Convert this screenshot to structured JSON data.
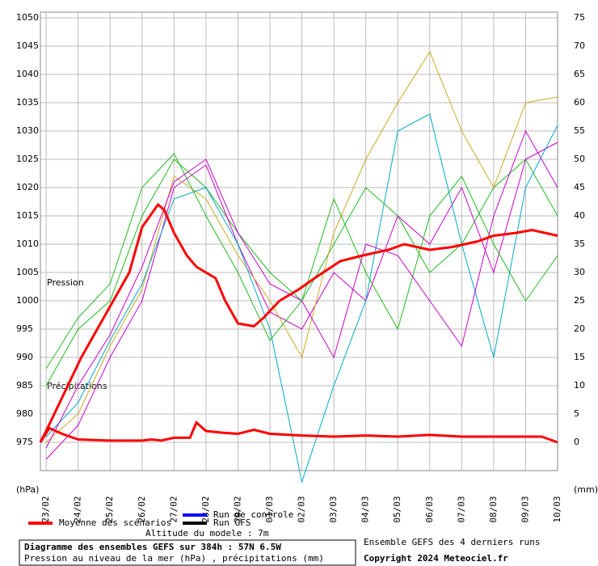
{
  "chart_data": {
    "type": "line",
    "title": "Diagramme des ensembles GEFS sur 384h : 57N 6.5W",
    "subtitle": "Pression au niveau de la mer (hPa) , précipitations (mm)",
    "y_label": "(hPa)",
    "y2_label": "(mm)",
    "annotations": [
      "Pression",
      "Précipitations",
      "Altitude du modele : 7m",
      "Ensemble GEFS des 4 derniers runs",
      "Copyright 2024 Meteociel.fr"
    ],
    "xlim": [
      -0.18,
      16
    ],
    "xticks": [
      {
        "value": 0,
        "label": "23/02"
      },
      {
        "value": 1,
        "label": "24/02"
      },
      {
        "value": 2,
        "label": "25/02"
      },
      {
        "value": 3,
        "label": "26/02"
      },
      {
        "value": 4,
        "label": "27/02"
      },
      {
        "value": 5,
        "label": "28/02"
      },
      {
        "value": 6,
        "label": "29/02"
      },
      {
        "value": 7,
        "label": "01/03"
      },
      {
        "value": 8,
        "label": "02/03"
      },
      {
        "value": 9,
        "label": "03/03"
      },
      {
        "value": 10,
        "label": "04/03"
      },
      {
        "value": 11,
        "label": "05/03"
      },
      {
        "value": 12,
        "label": "06/03"
      },
      {
        "value": 13,
        "label": "07/03"
      },
      {
        "value": 14,
        "label": "08/03"
      },
      {
        "value": 15,
        "label": "09/03"
      },
      {
        "value": 16,
        "label": "10/03"
      }
    ],
    "ylim": [
      970,
      1051
    ],
    "yticks": [
      975,
      980,
      985,
      990,
      995,
      1000,
      1005,
      1010,
      1015,
      1020,
      1025,
      1030,
      1035,
      1040,
      1045,
      1050
    ],
    "y2lim": [
      -5,
      76
    ],
    "y2ticks": [
      0,
      5,
      10,
      15,
      20,
      25,
      30,
      35,
      40,
      45,
      50,
      55,
      60,
      65,
      70,
      75
    ],
    "grid": true,
    "members": [
      {
        "color": "#22bb22",
        "values": [
          985,
          995,
          1000,
          1015,
          1025,
          1020,
          1012,
          1005,
          1000,
          1010,
          1020,
          1015,
          1005,
          1010,
          1020,
          1025,
          1015
        ]
      },
      {
        "color": "#cc00cc",
        "values": [
          972,
          978,
          990,
          1000,
          1020,
          1024,
          1010,
          998,
          995,
          1005,
          1000,
          1015,
          1010,
          1020,
          1005,
          1025,
          1028
        ]
      },
      {
        "color": "#ccaa22",
        "values": [
          975,
          980,
          992,
          1002,
          1022,
          1018,
          1008,
          1000,
          990,
          1012,
          1025,
          1035,
          1044,
          1030,
          1020,
          1035,
          1036
        ]
      },
      {
        "color": "#00aacc",
        "values": [
          976,
          982,
          993,
          1003,
          1018,
          1020,
          1010,
          995,
          968,
          985,
          1000,
          1030,
          1033,
          1010,
          990,
          1020,
          1031
        ]
      },
      {
        "color": "#22bb22",
        "values": [
          988,
          997,
          1003,
          1020,
          1026,
          1015,
          1005,
          993,
          1000,
          1018,
          1005,
          995,
          1015,
          1022,
          1010,
          1000,
          1008
        ]
      },
      {
        "color": "#cc00cc",
        "values": [
          974,
          985,
          994,
          1006,
          1021,
          1025,
          1012,
          1003,
          1000,
          990,
          1010,
          1008,
          1000,
          992,
          1015,
          1030,
          1020
        ]
      }
    ],
    "members_x": [
      0,
      1,
      2,
      3,
      4,
      5,
      6,
      7,
      8,
      9,
      10,
      11,
      12,
      13,
      14,
      15,
      16
    ],
    "series": [
      {
        "name": "Moyenne des scénarios",
        "color": "#ff0000",
        "x": [
          -0.18,
          0,
          1.1,
          1.6,
          2.1,
          2.6,
          3,
          3.5,
          3.7,
          4,
          4.4,
          4.7,
          5.3,
          5.6,
          6,
          6.5,
          6.8,
          7.3,
          7.9,
          8.4,
          9.2,
          9.9,
          10.7,
          11.2,
          12,
          12.7,
          13.5,
          14,
          14.7,
          15.2,
          16
        ],
        "values": [
          975,
          977,
          990,
          995,
          1000,
          1005,
          1013,
          1017,
          1016,
          1012,
          1008,
          1006,
          1004,
          1000,
          996,
          995.5,
          997,
          1000,
          1002,
          1004,
          1007,
          1008,
          1009,
          1010,
          1009,
          1009.5,
          1010.5,
          1011.5,
          1012,
          1012.5,
          1011.5
        ]
      },
      {
        "name": "Moyenne des scénarios (précipitations)",
        "legend": false,
        "color": "#ff0000",
        "axis": "y2",
        "x": [
          -0.18,
          0.1,
          0.5,
          1,
          2,
          3,
          3.3,
          3.6,
          4,
          4.5,
          4.7,
          5,
          5.5,
          6,
          6.5,
          7,
          8,
          9,
          10,
          11,
          12,
          13,
          14,
          15,
          15.5,
          16
        ],
        "values": [
          0,
          2.5,
          1.5,
          0.5,
          0.3,
          0.3,
          0.5,
          0.3,
          0.8,
          0.8,
          3.5,
          2,
          1.7,
          1.5,
          2.2,
          1.5,
          1.2,
          1,
          1.2,
          1,
          1.3,
          1,
          1,
          1,
          1,
          0
        ]
      },
      {
        "name": "Run de controle",
        "color": "#0000ff",
        "x": [],
        "values": []
      },
      {
        "name": "Run GFS",
        "color": "#000000",
        "x": [],
        "values": []
      }
    ]
  }
}
